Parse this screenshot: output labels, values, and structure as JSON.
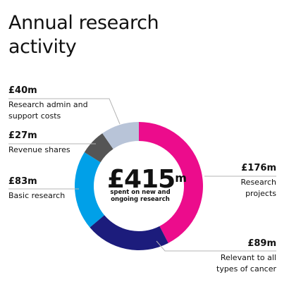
{
  "title": "Annual research activity",
  "total": {
    "value": "£415",
    "unit": "m",
    "caption": "spent on new and ongoing research"
  },
  "chart_data": {
    "type": "donut",
    "title": "Annual research activity",
    "unit": "£m",
    "total": 415,
    "slices": [
      {
        "label": "Research projects",
        "amount_label": "£176m",
        "value": 176,
        "color": "#ec0c8c"
      },
      {
        "label": "Relevant to all types of cancer",
        "amount_label": "£89m",
        "value": 89,
        "color": "#1c1c7c"
      },
      {
        "label": "Basic research",
        "amount_label": "£83m",
        "value": 83,
        "color": "#00a0e8"
      },
      {
        "label": "Revenue shares",
        "amount_label": "£27m",
        "value": 27,
        "color": "#555555"
      },
      {
        "label": "Research admin and support costs",
        "amount_label": "£40m",
        "value": 40,
        "color": "#b8c4d8"
      }
    ]
  },
  "colors": {
    "leader_line": "#b5b5b5",
    "text": "#111111"
  }
}
